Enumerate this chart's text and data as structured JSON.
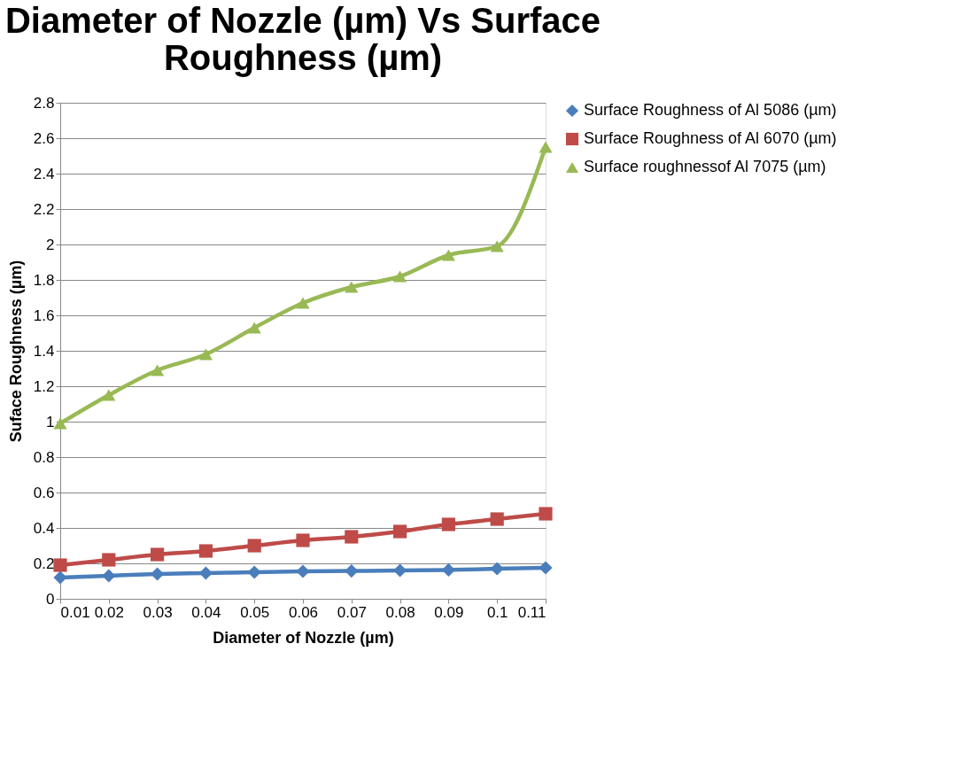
{
  "chart_data": {
    "type": "line",
    "title": "Diameter of Nozzle (µm) Vs Surface Roughness (µm)",
    "xlabel": "Diameter of Nozzle (µm)",
    "ylabel": "Suface Roughness (µm)",
    "categories": [
      "0.01",
      "0.02",
      "0.03",
      "0.04",
      "0.05",
      "0.06",
      "0.07",
      "0.08",
      "0.09",
      "0.1",
      "0.11"
    ],
    "series": [
      {
        "name": "Surface Roughness of Al 5086 (µm)",
        "color": "#4a7ebb",
        "marker": "diamond",
        "values": [
          0.12,
          0.13,
          0.14,
          0.145,
          0.15,
          0.155,
          0.157,
          0.16,
          0.163,
          0.17,
          0.175
        ]
      },
      {
        "name": "Surface Roughness of Al 6070 (µm)",
        "color": "#be4b48",
        "marker": "square",
        "values": [
          0.19,
          0.22,
          0.25,
          0.27,
          0.3,
          0.33,
          0.35,
          0.38,
          0.42,
          0.45,
          0.48
        ]
      },
      {
        "name": "Surface roughnessof Al 7075 (µm)",
        "color": "#98b954",
        "marker": "triangle",
        "values": [
          0.99,
          1.15,
          1.29,
          1.38,
          1.53,
          1.67,
          1.76,
          1.82,
          1.94,
          1.99,
          2.55
        ]
      }
    ],
    "ylim": [
      0,
      2.8
    ],
    "yticks": [
      0,
      0.2,
      0.4,
      0.6,
      0.8,
      1,
      1.2,
      1.4,
      1.6,
      1.8,
      2,
      2.2,
      2.4,
      2.6,
      2.8
    ],
    "grid": "y",
    "legend": "right",
    "line_style": "solid"
  }
}
